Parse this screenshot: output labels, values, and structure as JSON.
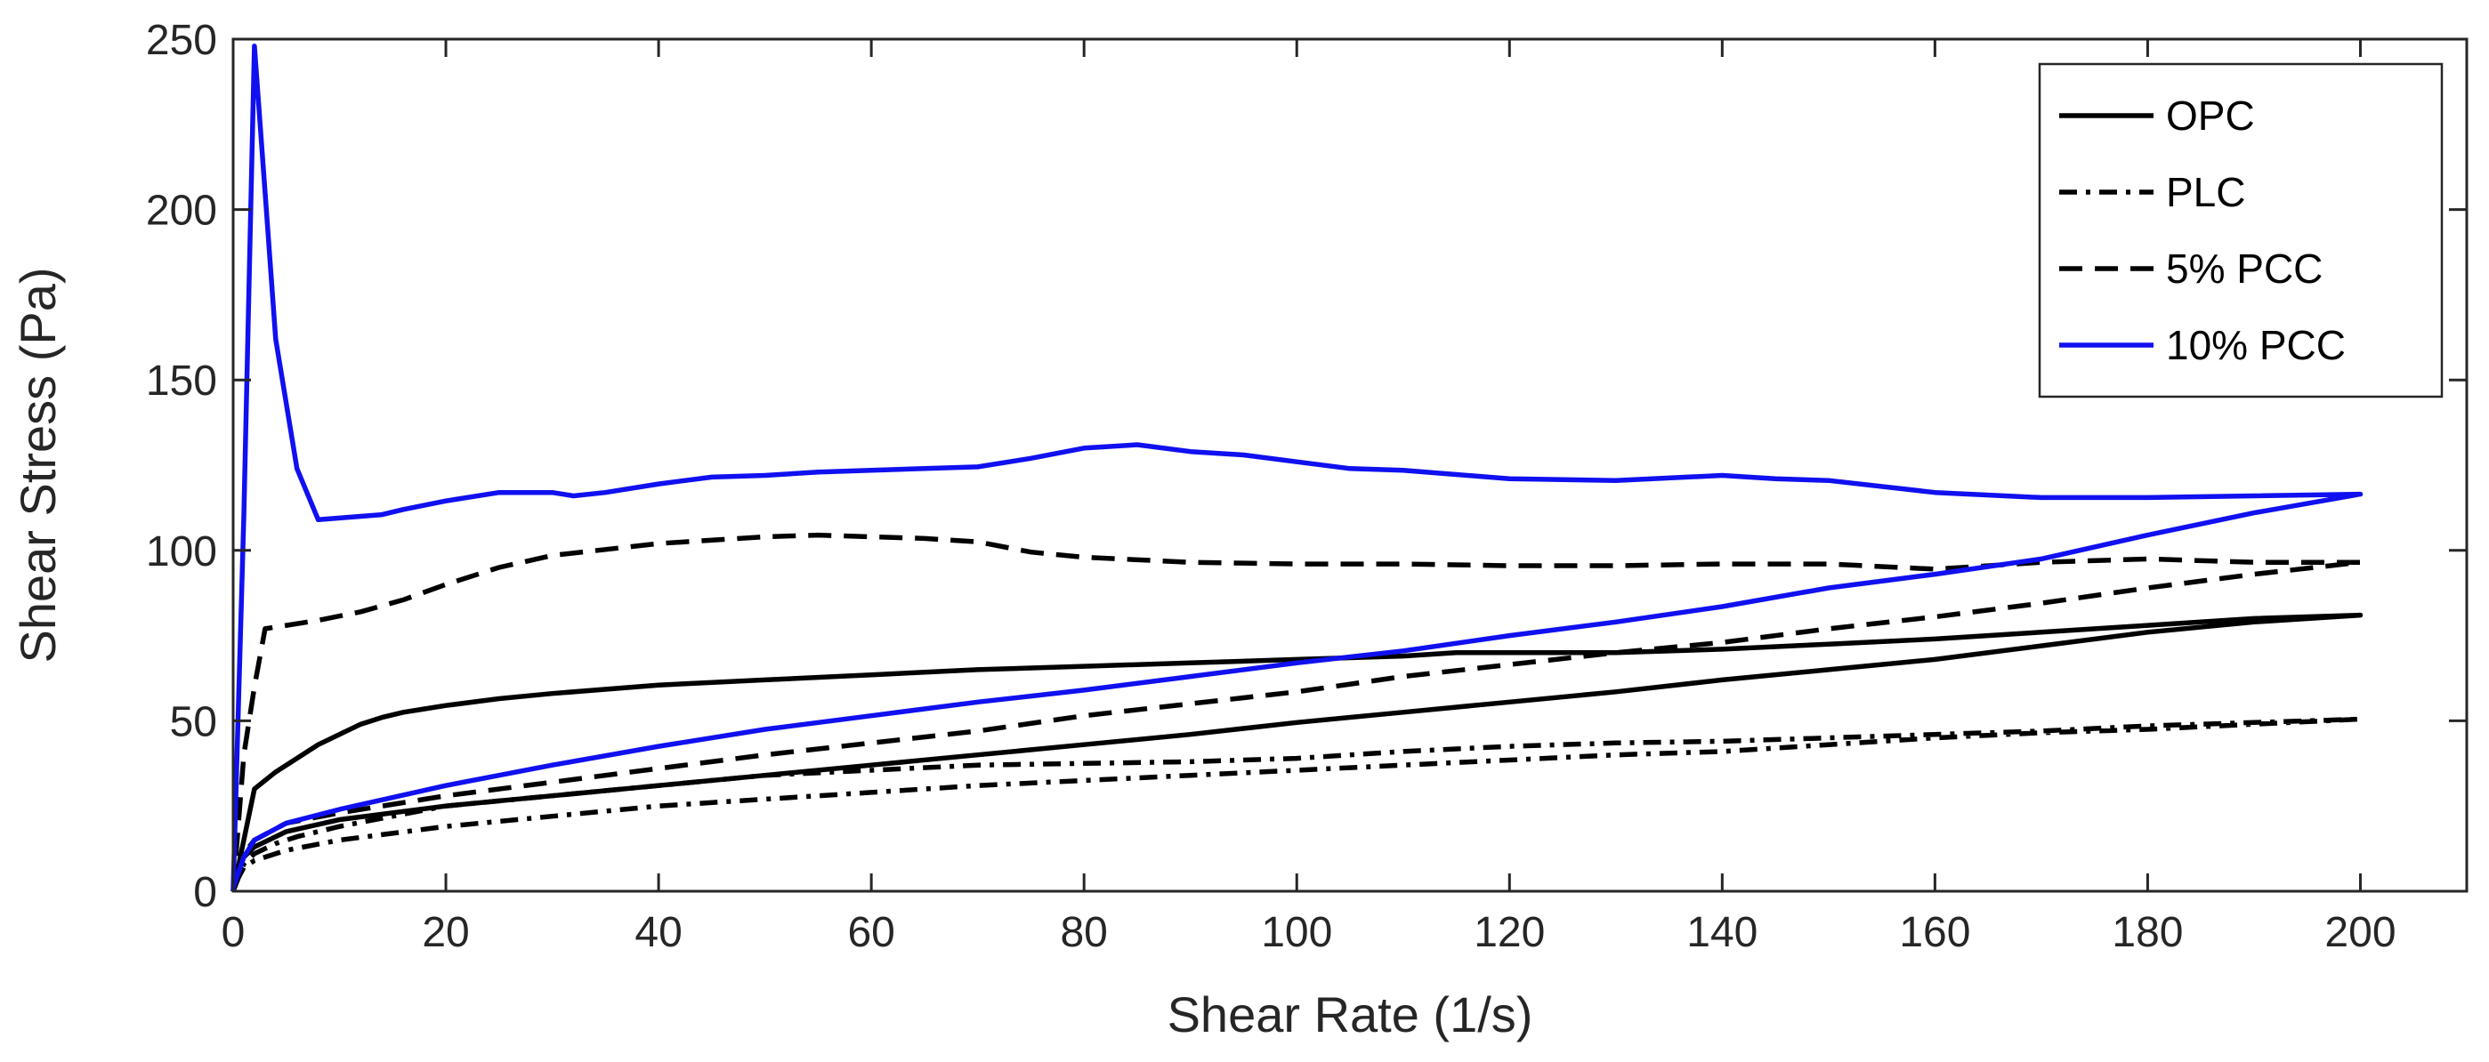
{
  "chart_data": {
    "type": "line",
    "xlabel": "Shear Rate (1/s)",
    "ylabel": "Shear Stress (Pa)",
    "xlim": [
      0,
      210
    ],
    "ylim": [
      0,
      250
    ],
    "xticks": [
      0,
      20,
      40,
      60,
      80,
      100,
      120,
      140,
      160,
      180,
      200
    ],
    "yticks": [
      0,
      50,
      100,
      150,
      200,
      250
    ],
    "grid": false,
    "legend_position": "top-right",
    "series": [
      {
        "name": "OPC",
        "color": "#000000",
        "dash": "solid",
        "x": [
          0,
          1,
          2,
          4,
          6,
          8,
          10,
          12,
          14,
          16,
          18,
          20,
          25,
          30,
          40,
          50,
          60,
          70,
          80,
          90,
          100,
          110,
          115,
          120,
          130,
          140,
          150,
          160,
          170,
          180,
          190,
          200,
          190,
          180,
          170,
          160,
          150,
          140,
          130,
          120,
          110,
          100,
          90,
          80,
          70,
          60,
          50,
          40,
          30,
          20,
          10,
          5,
          2,
          1,
          0
        ],
        "y": [
          0,
          15,
          30,
          35,
          39,
          43,
          46,
          49,
          51,
          52.5,
          53.5,
          54.5,
          56.5,
          58,
          60.5,
          62,
          63.5,
          65,
          66,
          67,
          68,
          69,
          70,
          70,
          70,
          71,
          72.5,
          74,
          76,
          78,
          80,
          81,
          79,
          76,
          72,
          68,
          65,
          62,
          58.5,
          55.5,
          52.5,
          49.5,
          46,
          43,
          40,
          37,
          34,
          31,
          28,
          25,
          21,
          17.5,
          13,
          10,
          2
        ]
      },
      {
        "name": "PLC",
        "color": "#000000",
        "dash": "dashdot",
        "x": [
          0,
          1,
          2,
          4,
          6,
          10,
          15,
          20,
          30,
          40,
          50,
          60,
          70,
          80,
          90,
          100,
          110,
          120,
          130,
          140,
          150,
          160,
          170,
          180,
          190,
          200,
          190,
          180,
          170,
          160,
          150,
          140,
          130,
          120,
          110,
          100,
          90,
          80,
          70,
          60,
          50,
          40,
          30,
          20,
          10,
          5,
          2,
          1,
          0
        ],
        "y": [
          0,
          8,
          11,
          14,
          16,
          19,
          22,
          25,
          28,
          31,
          34,
          35.5,
          37,
          37.5,
          38,
          39,
          41,
          42.5,
          43.5,
          44,
          45,
          46,
          47,
          48.5,
          49.5,
          50.5,
          49,
          47.5,
          46.5,
          45,
          43,
          41,
          40,
          38.5,
          37,
          35.5,
          34,
          32.5,
          31,
          29,
          27,
          25,
          22,
          19,
          15,
          12,
          9,
          7,
          1
        ]
      },
      {
        "name": "5% PCC",
        "color": "#000000",
        "dash": "dashed",
        "x": [
          0,
          1,
          2,
          3,
          5,
          8,
          12,
          16,
          20,
          25,
          30,
          40,
          50,
          55,
          60,
          65,
          70,
          75,
          80,
          90,
          100,
          110,
          120,
          130,
          140,
          150,
          160,
          170,
          180,
          190,
          200,
          190,
          180,
          170,
          160,
          150,
          140,
          130,
          120,
          110,
          100,
          90,
          80,
          70,
          60,
          50,
          40,
          30,
          20,
          10,
          5,
          2,
          1,
          0
        ],
        "y": [
          0,
          40,
          60,
          77,
          78,
          79.5,
          82,
          85.5,
          90,
          95,
          98.5,
          102,
          104,
          104.5,
          104,
          103.5,
          102.5,
          99.5,
          98,
          96.5,
          96,
          96,
          95.5,
          95.5,
          96,
          96,
          94.5,
          96.5,
          97.5,
          96.5,
          96.5,
          93,
          89,
          84.5,
          80.5,
          77,
          73,
          70,
          66.5,
          63,
          58.5,
          55,
          51.5,
          47,
          43.5,
          40,
          36,
          32,
          28,
          23,
          20,
          15,
          11,
          1
        ]
      },
      {
        "name": "10% PCC",
        "color": "#1010f0",
        "dash": "solid",
        "x": [
          0,
          1,
          2,
          3,
          4,
          6,
          8,
          10,
          14,
          16,
          20,
          25,
          30,
          32,
          35,
          40,
          45,
          50,
          55,
          60,
          65,
          70,
          75,
          80,
          85,
          90,
          95,
          100,
          105,
          110,
          120,
          130,
          140,
          145,
          150,
          160,
          170,
          180,
          190,
          200,
          190,
          180,
          170,
          160,
          150,
          140,
          130,
          120,
          110,
          100,
          90,
          80,
          70,
          60,
          50,
          40,
          30,
          20,
          10,
          5,
          2,
          1,
          0
        ],
        "y": [
          0,
          110,
          248,
          205,
          162,
          124,
          109,
          109.5,
          110.5,
          112,
          114.5,
          117,
          117,
          116,
          117,
          119.5,
          121.5,
          122,
          123,
          123.5,
          124,
          124.5,
          127,
          130,
          131,
          129,
          128,
          126,
          124,
          123.5,
          121,
          120.5,
          122,
          121,
          120.5,
          117,
          115.5,
          115.5,
          116,
          116.5,
          111,
          104.5,
          97.5,
          93,
          89,
          83.5,
          79,
          75,
          70.5,
          67,
          63,
          59,
          55.5,
          51.5,
          47.5,
          42.5,
          37,
          31,
          24,
          20,
          15,
          10,
          1
        ]
      }
    ]
  }
}
